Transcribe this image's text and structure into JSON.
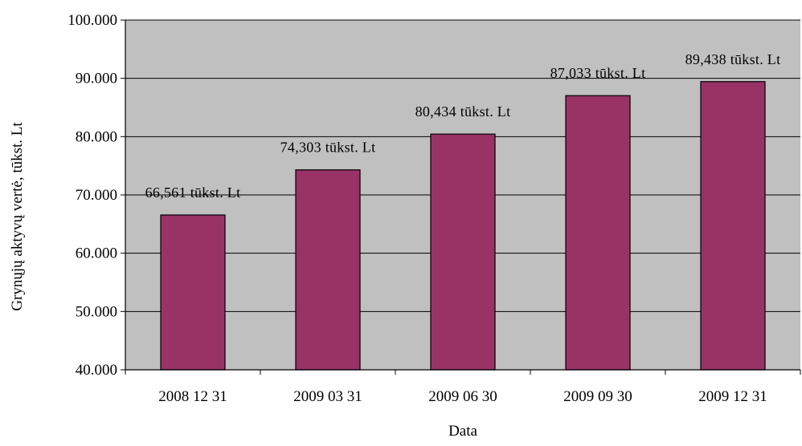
{
  "chart_data": {
    "type": "bar",
    "title": "",
    "xlabel": "Data",
    "ylabel": "Grynųjų aktyvų vertė, tūkst. Lt",
    "categories": [
      "2008 12 31",
      "2009 03 31",
      "2009 06 30",
      "2009 09 30",
      "2009 12 31"
    ],
    "values": [
      66561,
      74303,
      80434,
      87033,
      89438
    ],
    "data_labels": [
      "66,561 tūkst. Lt",
      "74,303 tūkst. Lt",
      "80,434 tūkst. Lt",
      "87,033 tūkst. Lt",
      "89,438 tūkst. Lt"
    ],
    "y_ticks": [
      40000,
      50000,
      60000,
      70000,
      80000,
      90000,
      100000
    ],
    "y_tick_labels": [
      "40.000",
      "50.000",
      "60.000",
      "70.000",
      "80.000",
      "90.000",
      "100.000"
    ],
    "ylim": [
      40000,
      100000
    ],
    "grid": true,
    "legend": "none",
    "colors": {
      "bar": "#993366",
      "plot_background": "#c0c0c0",
      "gridline": "#000000"
    }
  }
}
